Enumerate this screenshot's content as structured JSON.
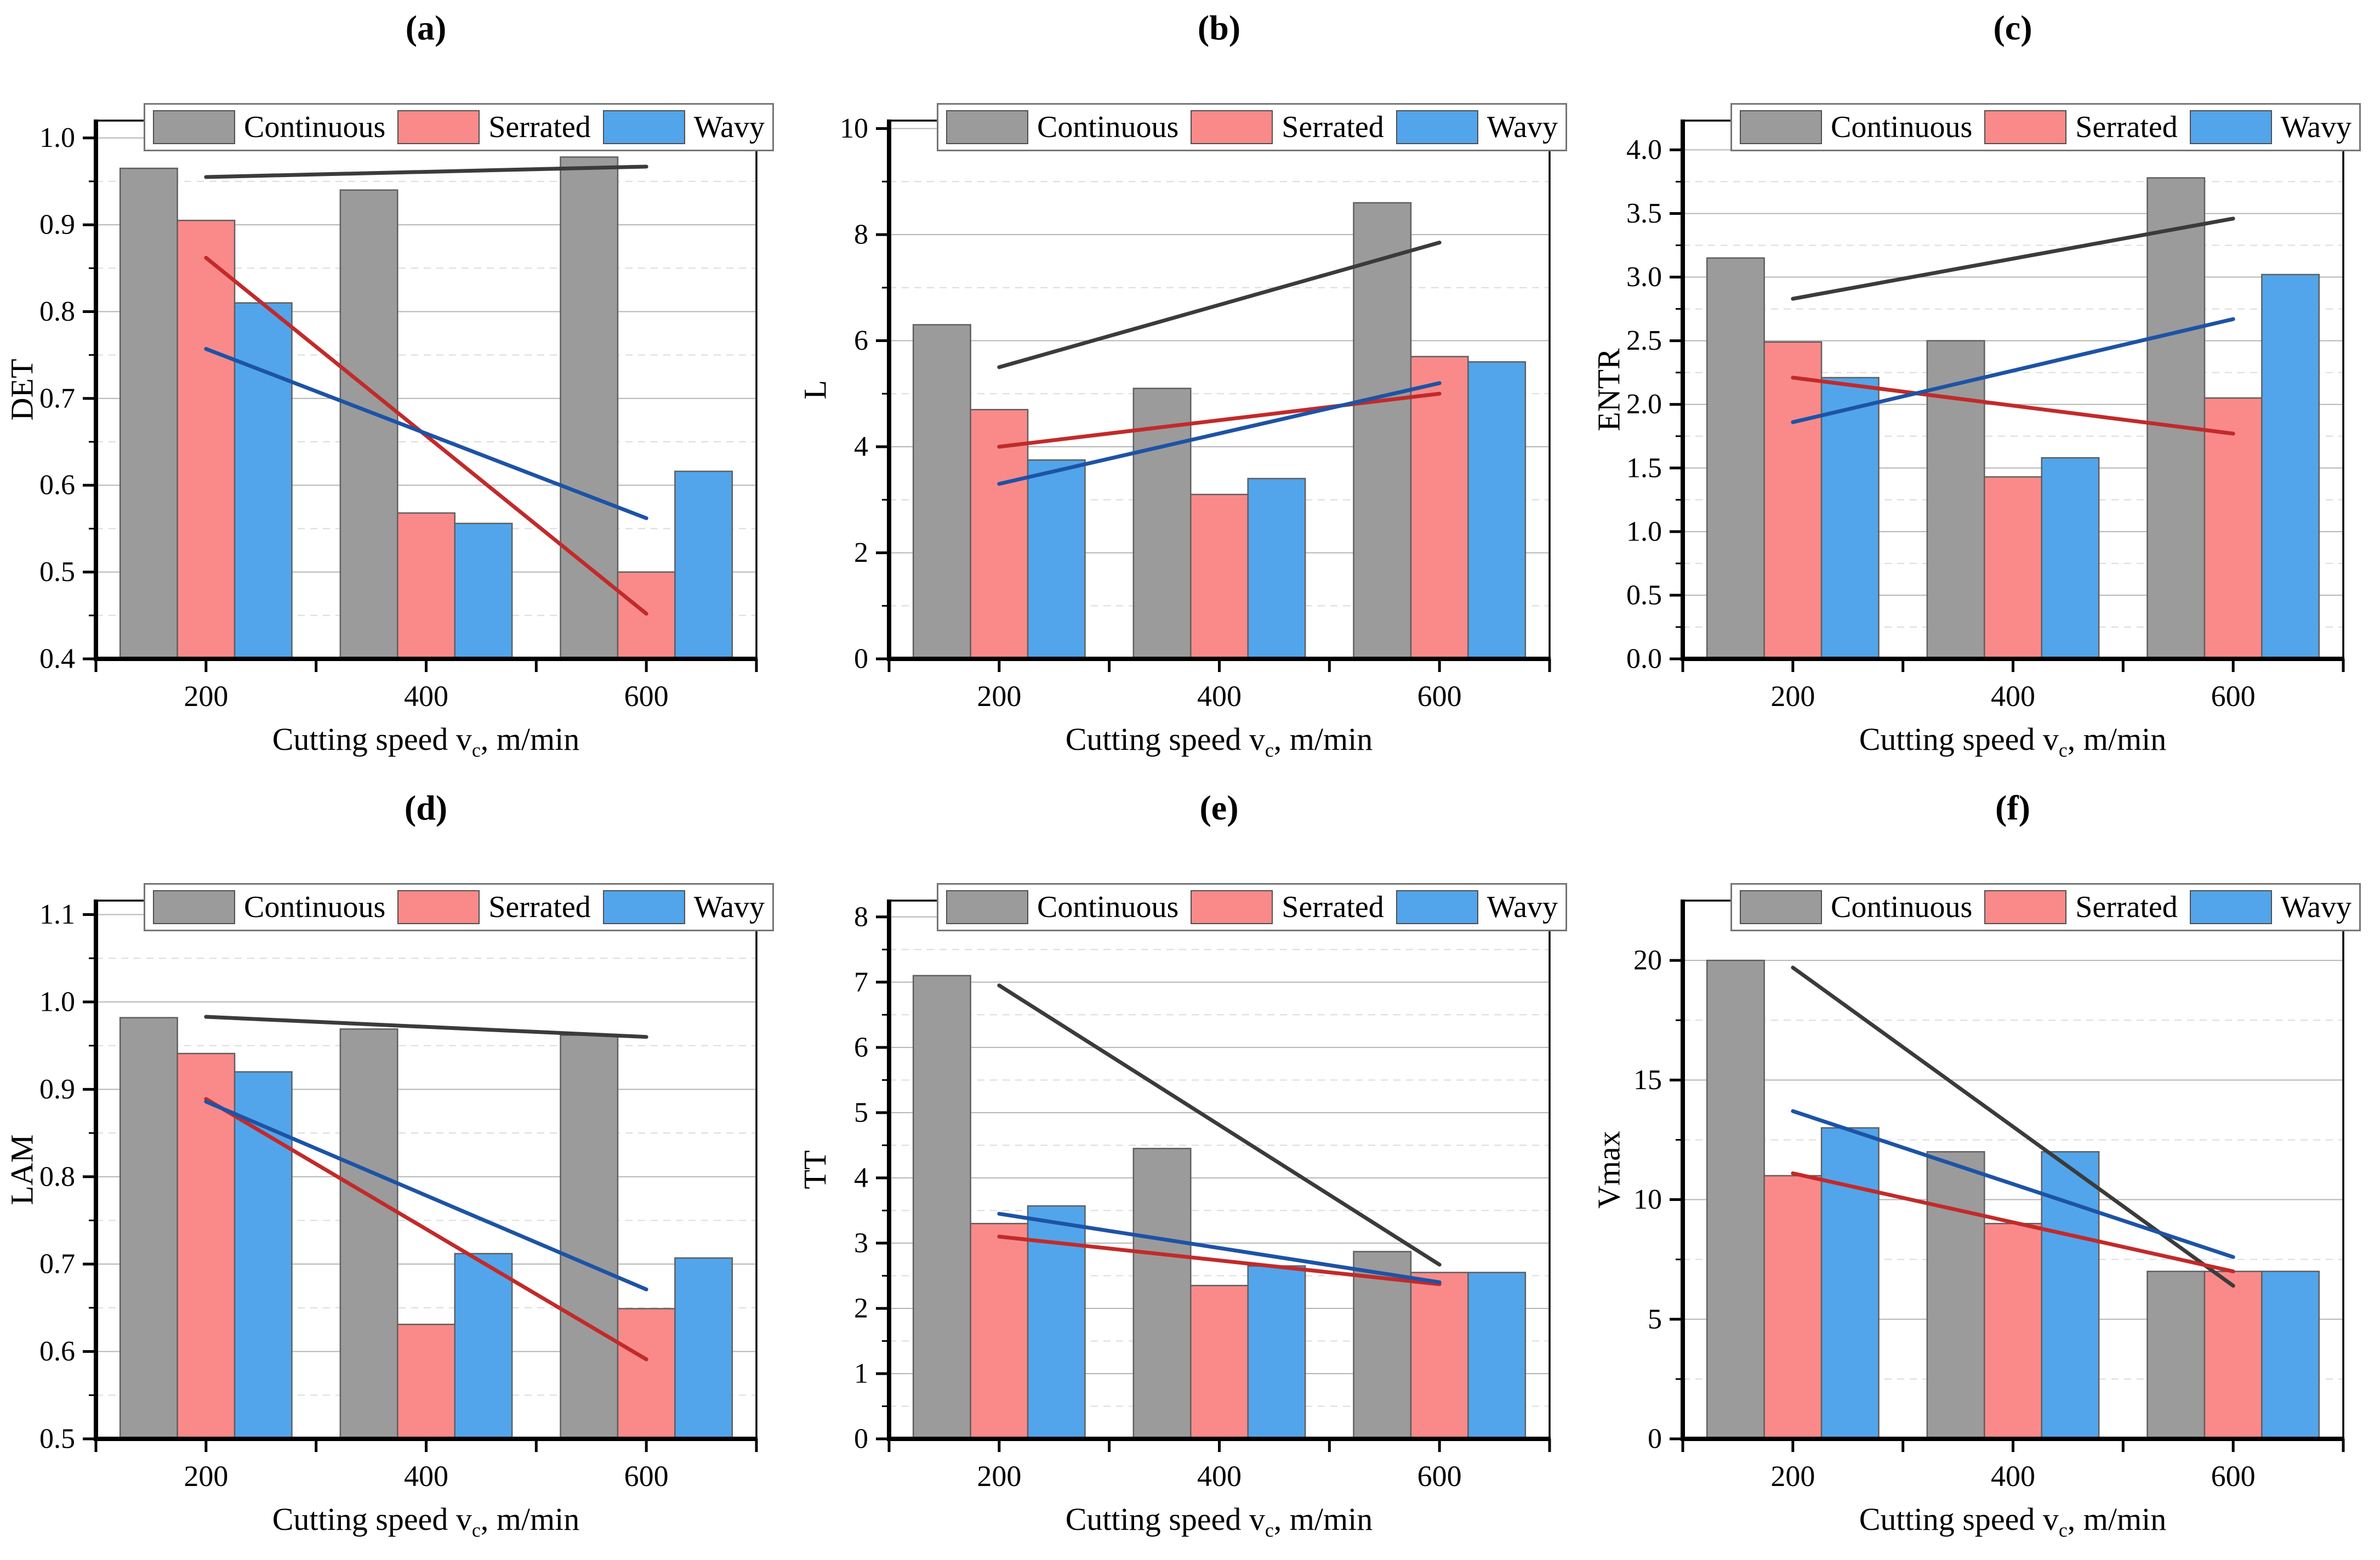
{
  "figure": {
    "background": "#ffffff"
  },
  "legend": {
    "box_border": "#767676",
    "swatch_border": "#4f4f4f",
    "items": [
      {
        "label": "Continuous",
        "color": "#9B9B9B"
      },
      {
        "label": "Serrated",
        "color": "#FA8A8A"
      },
      {
        "label": "Wavy",
        "color": "#52A5EA"
      }
    ]
  },
  "xaxis": {
    "prefix": "Cutting speed v",
    "sub": "c",
    "suffix": ", m/min",
    "categories": [
      "200",
      "400",
      "600"
    ]
  },
  "style": {
    "grid_major": "#B5B5B5",
    "grid_minor": "#DCDCDC",
    "frame": "#000000",
    "bar_border": "#5F5F5F",
    "tick_color": "#000000"
  },
  "chart_data": [
    {
      "id": "a",
      "type": "bar",
      "title": "(a)",
      "ylabel": "DET",
      "categories": [
        200,
        400,
        600
      ],
      "ylim": [
        0.4,
        1.02
      ],
      "ystep": 0.1,
      "ydecimals": 1,
      "series": [
        {
          "name": "Continuous",
          "values": [
            0.965,
            0.94,
            0.978
          ]
        },
        {
          "name": "Serrated",
          "values": [
            0.905,
            0.568,
            0.5
          ]
        },
        {
          "name": "Wavy",
          "values": [
            0.81,
            0.556,
            0.616
          ]
        }
      ],
      "trend_lines": [
        {
          "series": "Continuous",
          "color": "#3B3B3B",
          "from": 0.955,
          "to": 0.967
        },
        {
          "series": "Serrated",
          "color": "#C22A2A",
          "from": 0.862,
          "to": 0.452
        },
        {
          "series": "Wavy",
          "color": "#1D53A6",
          "from": 0.757,
          "to": 0.562
        }
      ]
    },
    {
      "id": "b",
      "type": "bar",
      "title": "(b)",
      "ylabel": "L",
      "categories": [
        200,
        400,
        600
      ],
      "ylim": [
        0,
        10.15
      ],
      "ystep": 2,
      "ydecimals": 0,
      "series": [
        {
          "name": "Continuous",
          "values": [
            6.3,
            5.1,
            8.6
          ]
        },
        {
          "name": "Serrated",
          "values": [
            4.7,
            3.1,
            5.7
          ]
        },
        {
          "name": "Wavy",
          "values": [
            3.75,
            3.4,
            5.6
          ]
        }
      ],
      "trend_lines": [
        {
          "series": "Continuous",
          "color": "#3B3B3B",
          "from": 5.5,
          "to": 7.85
        },
        {
          "series": "Serrated",
          "color": "#C22A2A",
          "from": 4.0,
          "to": 5.0
        },
        {
          "series": "Wavy",
          "color": "#1D53A6",
          "from": 3.3,
          "to": 5.2
        }
      ]
    },
    {
      "id": "c",
      "type": "bar",
      "title": "(c)",
      "ylabel": "ENTR",
      "categories": [
        200,
        400,
        600
      ],
      "ylim": [
        0,
        4.23
      ],
      "ystep": 0.5,
      "ydecimals": 1,
      "series": [
        {
          "name": "Continuous",
          "values": [
            3.15,
            2.5,
            3.78
          ]
        },
        {
          "name": "Serrated",
          "values": [
            2.49,
            1.43,
            2.05
          ]
        },
        {
          "name": "Wavy",
          "values": [
            2.21,
            1.58,
            3.02
          ]
        }
      ],
      "trend_lines": [
        {
          "series": "Continuous",
          "color": "#3B3B3B",
          "from": 2.83,
          "to": 3.46
        },
        {
          "series": "Serrated",
          "color": "#C22A2A",
          "from": 2.21,
          "to": 1.77
        },
        {
          "series": "Wavy",
          "color": "#1D53A6",
          "from": 1.86,
          "to": 2.67
        }
      ]
    },
    {
      "id": "d",
      "type": "bar",
      "title": "(d)",
      "ylabel": "LAM",
      "categories": [
        200,
        400,
        600
      ],
      "ylim": [
        0.5,
        1.116
      ],
      "ystep": 0.1,
      "ydecimals": 1,
      "series": [
        {
          "name": "Continuous",
          "values": [
            0.982,
            0.969,
            0.962
          ]
        },
        {
          "name": "Serrated",
          "values": [
            0.941,
            0.631,
            0.649
          ]
        },
        {
          "name": "Wavy",
          "values": [
            0.92,
            0.712,
            0.707
          ]
        }
      ],
      "trend_lines": [
        {
          "series": "Continuous",
          "color": "#3B3B3B",
          "from": 0.983,
          "to": 0.96
        },
        {
          "series": "Serrated",
          "color": "#C22A2A",
          "from": 0.889,
          "to": 0.591
        },
        {
          "series": "Wavy",
          "color": "#1D53A6",
          "from": 0.886,
          "to": 0.671
        }
      ]
    },
    {
      "id": "e",
      "type": "bar",
      "title": "(e)",
      "ylabel": "TT",
      "categories": [
        200,
        400,
        600
      ],
      "ylim": [
        0,
        8.25
      ],
      "ystep": 1,
      "ydecimals": 0,
      "series": [
        {
          "name": "Continuous",
          "values": [
            7.1,
            4.45,
            2.87
          ]
        },
        {
          "name": "Serrated",
          "values": [
            3.3,
            2.35,
            2.55
          ]
        },
        {
          "name": "Wavy",
          "values": [
            3.57,
            2.65,
            2.55
          ]
        }
      ],
      "trend_lines": [
        {
          "series": "Continuous",
          "color": "#3B3B3B",
          "from": 6.95,
          "to": 2.67
        },
        {
          "series": "Serrated",
          "color": "#C22A2A",
          "from": 3.1,
          "to": 2.37
        },
        {
          "series": "Wavy",
          "color": "#1D53A6",
          "from": 3.45,
          "to": 2.4
        }
      ]
    },
    {
      "id": "f",
      "type": "bar",
      "title": "(f)",
      "ylabel": "Vmax",
      "categories": [
        200,
        400,
        600
      ],
      "ylim": [
        0,
        22.5
      ],
      "ystep": 5,
      "ydecimals": 0,
      "series": [
        {
          "name": "Continuous",
          "values": [
            20.0,
            12.0,
            7.0
          ]
        },
        {
          "name": "Serrated",
          "values": [
            11.0,
            9.0,
            7.0
          ]
        },
        {
          "name": "Wavy",
          "values": [
            13.0,
            12.0,
            7.0
          ]
        }
      ],
      "trend_lines": [
        {
          "series": "Continuous",
          "color": "#3B3B3B",
          "from": 19.7,
          "to": 6.4
        },
        {
          "series": "Serrated",
          "color": "#C22A2A",
          "from": 11.1,
          "to": 7.0
        },
        {
          "series": "Wavy",
          "color": "#1D53A6",
          "from": 13.7,
          "to": 7.6
        }
      ]
    }
  ]
}
